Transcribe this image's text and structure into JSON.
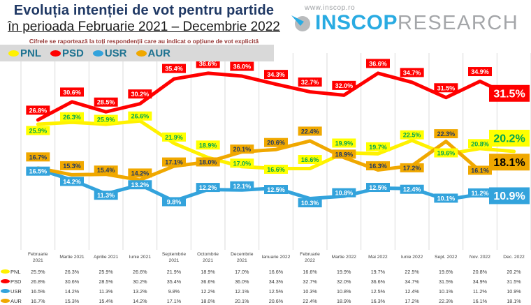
{
  "header": {
    "title": "Evoluția intenției de vot pentru partide",
    "subtitle": "în perioada Februarie 2021 – Decembrie 2022",
    "note": "Cifrele se raportează la toți respondenții care au indicat o opțiune de vot explicită"
  },
  "logo": {
    "url": "www.inscop.ro",
    "name_primary": "INSCOP",
    "name_secondary": "RESEARCH"
  },
  "colors": {
    "title_navy": "#1F3864",
    "legend_bg": "#D9D9D9",
    "legend_text": "#1F7391",
    "gridline": "#DBDBDB"
  },
  "chart_data": {
    "type": "line",
    "title": "Evoluția intenției de vot pentru partide",
    "xlabel": "",
    "ylabel": "",
    "ylim": [
      8,
      40
    ],
    "grid": "vertical-only",
    "legend_position": "top-left",
    "categories": [
      "Februarie 2021",
      "Martie 2021",
      "Aprilie 2021",
      "Iunie 2021",
      "Septembrie 2021",
      "Octombrie 2021",
      "Decembrie 2021",
      "Ianuarie 2022",
      "Februarie 2022",
      "Martie 2022",
      "Mai 2022",
      "Iunie 2022",
      "Sept. 2022",
      "Nov. 2022",
      "Dec. 2022"
    ],
    "series": [
      {
        "name": "PNL",
        "values": [
          25.9,
          26.3,
          25.9,
          26.6,
          21.9,
          18.9,
          17.0,
          16.6,
          16.6,
          19.9,
          19.7,
          22.5,
          19.6,
          20.8,
          20.2
        ],
        "color": "#FFF100",
        "label_bg": "#FFFF00",
        "label_text": "#00A651",
        "final_label": "20.2%",
        "final_text": "#00A651"
      },
      {
        "name": "PSD",
        "values": [
          26.8,
          30.6,
          28.5,
          30.2,
          35.4,
          36.6,
          36.0,
          34.3,
          32.7,
          32.0,
          36.6,
          34.7,
          31.5,
          34.9,
          31.5
        ],
        "color": "#FF0000",
        "label_bg": "#FF0000",
        "label_text": "#FFFFFF",
        "final_label": "31.5%",
        "final_text": "#FFFFFF"
      },
      {
        "name": "USR",
        "values": [
          16.5,
          14.2,
          11.3,
          13.2,
          9.8,
          12.2,
          12.1,
          12.5,
          10.3,
          10.8,
          12.5,
          12.4,
          10.1,
          11.2,
          10.9
        ],
        "color": "#33A3DC",
        "label_bg": "#33A3DC",
        "label_text": "#FFFFFF",
        "final_label": "10.9%",
        "final_text": "#FFFFFF"
      },
      {
        "name": "AUR",
        "values": [
          16.7,
          15.3,
          15.4,
          14.2,
          17.1,
          18.0,
          20.1,
          20.6,
          22.4,
          18.9,
          16.3,
          17.2,
          22.3,
          16.1,
          18.1
        ],
        "color": "#F0A800",
        "label_bg": "#F0A800",
        "label_text": "#1F3864",
        "final_label": "18.1%",
        "final_text": "#000000"
      }
    ]
  }
}
